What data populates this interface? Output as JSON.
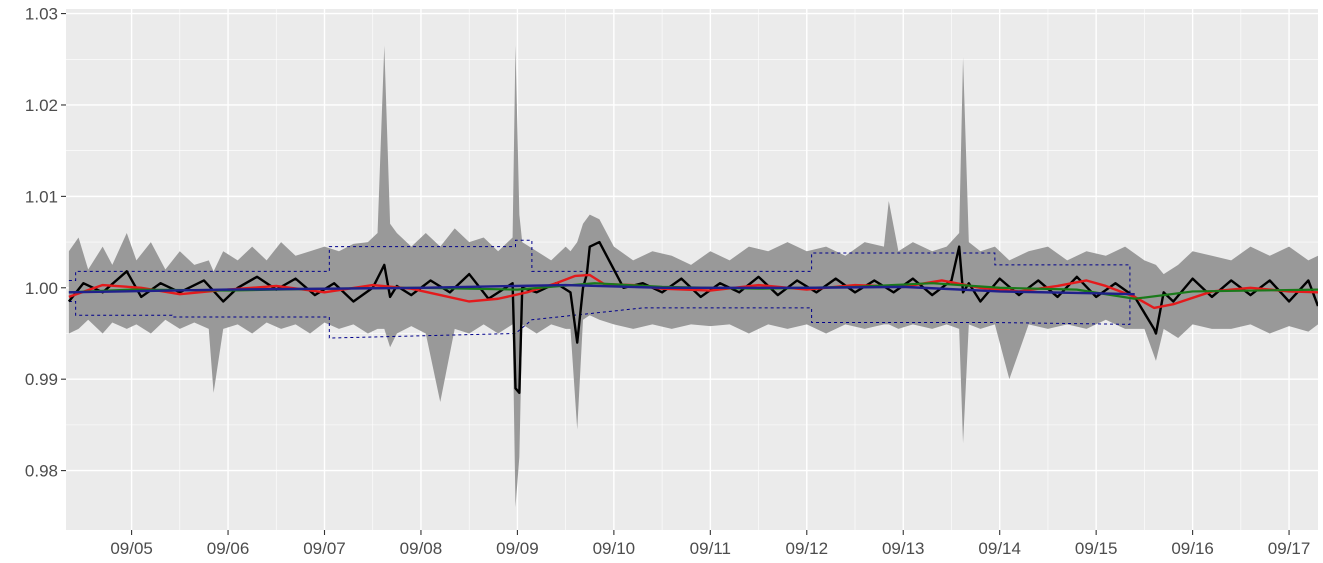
{
  "chart_data": {
    "type": "line",
    "title": "",
    "xlabel": "",
    "ylabel": "",
    "x_tick_labels": [
      "09/05",
      "09/06",
      "09/07",
      "09/08",
      "09/09",
      "09/10",
      "09/11",
      "09/12",
      "09/13",
      "09/14",
      "09/15",
      "09/16",
      "09/17"
    ],
    "x_ticks": [
      1,
      2,
      3,
      4,
      5,
      6,
      7,
      8,
      9,
      10,
      11,
      12,
      13
    ],
    "y_tick_labels": [
      "0.98",
      "0.99",
      "1.00",
      "1.01",
      "1.02",
      "1.03"
    ],
    "y_ticks": [
      0.98,
      0.99,
      1.0,
      1.01,
      1.02,
      1.03
    ],
    "xlim": [
      0.32,
      13.3
    ],
    "ylim": [
      0.9735,
      1.0305
    ],
    "grid": true,
    "legend": "none",
    "colors": {
      "panel": "#ebebeb",
      "grid": "#ffffff",
      "outer_band": "#999999",
      "inner_band": "#d6d6d6",
      "raw_series": "#000000",
      "smooth_red": "#e41a1c",
      "smooth_green": "#1a7a1a",
      "smooth_blue": "#20208c",
      "envelope_dashed": "#00008b"
    },
    "series": [
      {
        "key": "raw",
        "x": [
          0.35,
          0.5,
          0.7,
          0.95,
          1.1,
          1.3,
          1.5,
          1.75,
          1.95,
          2.1,
          2.3,
          2.5,
          2.7,
          2.9,
          3.1,
          3.3,
          3.5,
          3.62,
          3.68,
          3.75,
          3.9,
          4.1,
          4.3,
          4.5,
          4.7,
          4.95,
          4.98,
          5.02,
          5.05,
          5.2,
          5.4,
          5.55,
          5.62,
          5.68,
          5.72,
          5.75,
          5.85,
          6.1,
          6.3,
          6.5,
          6.7,
          6.9,
          7.1,
          7.3,
          7.5,
          7.7,
          7.9,
          8.1,
          8.3,
          8.5,
          8.7,
          8.9,
          9.1,
          9.3,
          9.5,
          9.58,
          9.62,
          9.68,
          9.8,
          10.0,
          10.2,
          10.4,
          10.6,
          10.8,
          11.0,
          11.2,
          11.4,
          11.6,
          11.62,
          11.7,
          11.8,
          12.0,
          12.2,
          12.4,
          12.6,
          12.8,
          13.0,
          13.2,
          13.3
        ],
        "y": [
          0.9985,
          1.0005,
          0.9995,
          1.0018,
          0.999,
          1.0005,
          0.9995,
          1.0008,
          0.9985,
          1.0,
          1.0012,
          0.9998,
          1.001,
          0.9992,
          1.0005,
          0.9985,
          1.0,
          1.0025,
          0.999,
          1.0002,
          0.9992,
          1.0008,
          0.9995,
          1.0015,
          0.9988,
          1.0005,
          0.989,
          0.9885,
          1.0,
          0.9995,
          1.0005,
          0.9995,
          0.994,
          1.0,
          1.0015,
          1.0045,
          1.005,
          1.0,
          1.0005,
          0.9995,
          1.001,
          0.999,
          1.0005,
          0.9995,
          1.0012,
          0.9992,
          1.0008,
          0.9995,
          1.001,
          0.9995,
          1.0008,
          0.9995,
          1.001,
          0.9992,
          1.0008,
          1.0045,
          0.9995,
          1.0005,
          0.9985,
          1.001,
          0.9992,
          1.0008,
          0.999,
          1.0012,
          0.999,
          1.0005,
          0.999,
          0.9955,
          0.995,
          0.9995,
          0.9985,
          1.001,
          0.999,
          1.0008,
          0.9992,
          1.0008,
          0.9985,
          1.0008,
          0.998
        ]
      },
      {
        "key": "smooth_red",
        "x": [
          0.35,
          0.7,
          1.1,
          1.5,
          2.0,
          2.5,
          3.0,
          3.5,
          3.9,
          4.2,
          4.5,
          4.8,
          5.1,
          5.4,
          5.6,
          5.75,
          5.9,
          6.2,
          6.5,
          7.0,
          7.5,
          8.0,
          8.5,
          9.0,
          9.4,
          9.8,
          10.2,
          10.6,
          10.9,
          11.1,
          11.4,
          11.6,
          11.8,
          12.2,
          12.6,
          13.0,
          13.3
        ],
        "y": [
          0.999,
          1.0003,
          1.0,
          0.9993,
          0.9998,
          1.0002,
          0.9995,
          1.0003,
          0.9999,
          0.9992,
          0.9985,
          0.9988,
          0.9995,
          1.0005,
          1.0013,
          1.0014,
          1.0004,
          1.0003,
          0.9999,
          0.9997,
          1.0003,
          0.9998,
          1.0003,
          1.0001,
          1.0008,
          1.0,
          0.9996,
          1.0002,
          1.0008,
          1.0002,
          0.999,
          0.9978,
          0.9982,
          0.9996,
          1.0,
          0.9996,
          0.9995
        ]
      },
      {
        "key": "smooth_green",
        "x": [
          0.35,
          1.0,
          2.0,
          3.0,
          4.0,
          5.0,
          5.8,
          6.5,
          7.5,
          8.5,
          9.3,
          10.0,
          10.8,
          11.4,
          12.0,
          13.3
        ],
        "y": [
          0.9995,
          0.9998,
          0.9997,
          0.9999,
          1.0,
          0.9998,
          1.0005,
          1.0001,
          0.9999,
          1.0001,
          1.0005,
          1.0,
          0.9998,
          0.9988,
          0.9996,
          0.9998
        ]
      },
      {
        "key": "smooth_blue",
        "x": [
          0.35,
          2.0,
          4.0,
          5.5,
          6.5,
          8.0,
          9.0,
          10.0,
          11.0,
          11.4
        ],
        "y": [
          0.9995,
          0.9998,
          1.0,
          1.0003,
          1.0,
          1.0,
          1.0001,
          0.9996,
          0.9994,
          0.9993
        ]
      }
    ],
    "outer_band": {
      "x": [
        0.35,
        0.45,
        0.55,
        0.7,
        0.8,
        0.95,
        1.05,
        1.2,
        1.35,
        1.5,
        1.65,
        1.8,
        1.85,
        1.95,
        2.1,
        2.25,
        2.4,
        2.55,
        2.7,
        2.85,
        3.0,
        3.15,
        3.3,
        3.45,
        3.55,
        3.62,
        3.68,
        3.75,
        3.9,
        4.05,
        4.2,
        4.35,
        4.5,
        4.65,
        4.8,
        4.95,
        4.98,
        5.02,
        5.05,
        5.2,
        5.35,
        5.5,
        5.55,
        5.62,
        5.68,
        5.75,
        5.85,
        6.0,
        6.2,
        6.4,
        6.6,
        6.8,
        7.0,
        7.2,
        7.4,
        7.6,
        7.8,
        8.0,
        8.2,
        8.4,
        8.6,
        8.8,
        8.85,
        8.95,
        9.1,
        9.3,
        9.45,
        9.58,
        9.62,
        9.68,
        9.8,
        9.95,
        10.1,
        10.3,
        10.5,
        10.7,
        10.9,
        11.1,
        11.3,
        11.5,
        11.62,
        11.7,
        11.85,
        12.0,
        12.2,
        12.4,
        12.6,
        12.8,
        13.0,
        13.2,
        13.3
      ],
      "upper": [
        1.004,
        1.0055,
        1.002,
        1.0045,
        1.0025,
        1.006,
        1.003,
        1.005,
        1.002,
        1.004,
        1.0025,
        1.003,
        1.0018,
        1.004,
        1.003,
        1.0045,
        1.003,
        1.005,
        1.0035,
        1.004,
        1.0045,
        1.004,
        1.0048,
        1.005,
        1.006,
        1.0265,
        1.007,
        1.006,
        1.0045,
        1.006,
        1.0045,
        1.0065,
        1.005,
        1.0055,
        1.004,
        1.0055,
        1.0265,
        1.008,
        1.005,
        1.004,
        1.003,
        1.0045,
        1.004,
        1.005,
        1.007,
        1.008,
        1.0075,
        1.0045,
        1.003,
        1.004,
        1.0035,
        1.0025,
        1.004,
        1.003,
        1.0045,
        1.004,
        1.005,
        1.004,
        1.0045,
        1.0035,
        1.005,
        1.0045,
        1.0095,
        1.004,
        1.005,
        1.004,
        1.0045,
        1.006,
        1.0252,
        1.005,
        1.004,
        1.0045,
        1.003,
        1.004,
        1.0045,
        1.003,
        1.004,
        1.0035,
        1.0045,
        1.003,
        1.0025,
        1.0015,
        1.0025,
        1.004,
        1.0035,
        1.003,
        1.0045,
        1.0035,
        1.0045,
        1.003,
        1.0035
      ],
      "lower": [
        0.995,
        0.9955,
        0.9965,
        0.995,
        0.9962,
        0.9955,
        0.996,
        0.995,
        0.9965,
        0.9955,
        0.9962,
        0.9955,
        0.9885,
        0.9955,
        0.996,
        0.995,
        0.9962,
        0.9955,
        0.996,
        0.995,
        0.9962,
        0.9955,
        0.996,
        0.995,
        0.9955,
        0.9955,
        0.9935,
        0.995,
        0.9958,
        0.995,
        0.9875,
        0.9955,
        0.995,
        0.996,
        0.995,
        0.996,
        0.976,
        0.9815,
        0.996,
        0.995,
        0.996,
        0.9955,
        0.9955,
        0.9845,
        0.9965,
        0.997,
        0.9965,
        0.996,
        0.9955,
        0.996,
        0.9955,
        0.996,
        0.9958,
        0.996,
        0.995,
        0.996,
        0.9955,
        0.996,
        0.995,
        0.996,
        0.9955,
        0.996,
        0.996,
        0.9955,
        0.996,
        0.9955,
        0.996,
        0.9955,
        0.983,
        0.996,
        0.9955,
        0.996,
        0.99,
        0.996,
        0.9955,
        0.996,
        0.9955,
        0.9965,
        0.9955,
        0.9955,
        0.992,
        0.9955,
        0.9945,
        0.996,
        0.9955,
        0.9955,
        0.996,
        0.995,
        0.9958,
        0.9952,
        0.996
      ]
    },
    "inner_band": {
      "x": [
        0.35,
        0.7,
        1.1,
        1.5,
        2.0,
        2.5,
        3.0,
        3.5,
        4.0,
        4.5,
        5.0,
        5.5,
        6.0,
        6.5,
        7.0,
        7.5,
        8.0,
        8.5,
        9.0,
        9.5,
        10.0,
        10.5,
        11.0,
        11.4,
        11.6,
        12.0,
        12.5,
        13.0,
        13.3
      ],
      "upper": [
        1.0015,
        1.0012,
        1.0015,
        1.0012,
        1.002,
        1.0025,
        1.0022,
        1.003,
        1.0035,
        1.0038,
        1.0035,
        1.0028,
        1.0022,
        1.002,
        1.0022,
        1.0026,
        1.0028,
        1.003,
        1.0028,
        1.0025,
        1.0023,
        1.0022,
        1.002,
        1.0018,
        1.0015,
        1.0015,
        1.0015,
        1.0012,
        1.0012
      ],
      "lower": [
        0.9975,
        0.9978,
        0.9978,
        0.998,
        0.9975,
        0.997,
        0.9968,
        0.996,
        0.9958,
        0.9962,
        0.9965,
        0.997,
        0.9975,
        0.9978,
        0.9976,
        0.9974,
        0.9972,
        0.9972,
        0.9972,
        0.9975,
        0.9976,
        0.9978,
        0.998,
        0.998,
        0.998,
        0.9982,
        0.9982,
        0.9984,
        0.9984
      ]
    },
    "envelope": {
      "upper_x": [
        0.35,
        0.42,
        0.42,
        1.42,
        1.42,
        2.7,
        2.7,
        3.05,
        3.05,
        4.98,
        4.98,
        5.15,
        5.15,
        6.3,
        6.3,
        6.8,
        6.8,
        7.3,
        7.3,
        8.05,
        8.05,
        9.0,
        9.0,
        9.95,
        9.95,
        11.35,
        11.35
      ],
      "upper_y": [
        1.0008,
        1.0008,
        1.0018,
        1.0018,
        1.0018,
        1.0018,
        1.0018,
        1.0018,
        1.0045,
        1.0045,
        1.0052,
        1.0052,
        1.0018,
        1.0018,
        1.0018,
        1.0018,
        1.0018,
        1.0018,
        1.0018,
        1.0018,
        1.0038,
        1.0038,
        1.0038,
        1.0038,
        1.0025,
        1.0025,
        0.9995
      ],
      "lower_x": [
        0.35,
        0.42,
        0.42,
        1.42,
        1.42,
        2.7,
        2.7,
        3.05,
        3.05,
        4.98,
        4.98,
        5.15,
        5.15,
        6.3,
        6.3,
        6.8,
        6.8,
        7.3,
        7.3,
        8.05,
        8.05,
        9.0,
        9.0,
        9.95,
        9.95,
        11.35,
        11.35
      ],
      "lower_y": [
        0.9985,
        0.9985,
        0.997,
        0.997,
        0.9968,
        0.9968,
        0.9968,
        0.9968,
        0.9945,
        0.995,
        0.995,
        0.9965,
        0.9965,
        0.9978,
        0.9978,
        0.9978,
        0.9978,
        0.9978,
        0.9978,
        0.9978,
        0.9962,
        0.9962,
        0.9962,
        0.9962,
        0.9962,
        0.996,
        0.9995
      ]
    }
  }
}
